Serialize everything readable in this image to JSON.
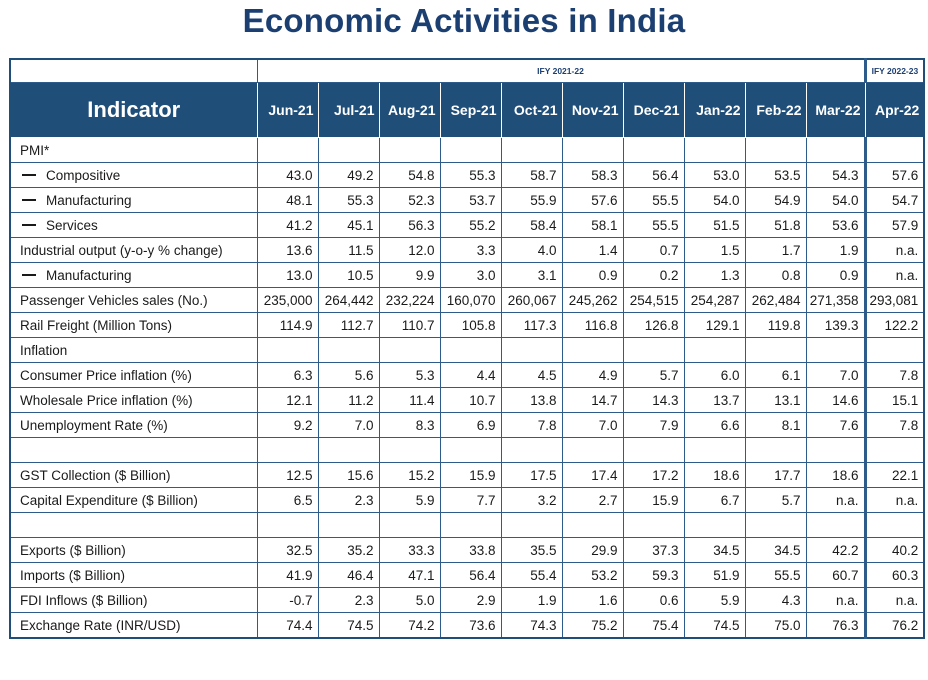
{
  "title": "Economic Activities in India",
  "fiscal_years": {
    "fy1": "IFY 2021-22",
    "fy2": "IFY 2022-23"
  },
  "header": {
    "indicator": "Indicator",
    "months": [
      "Jun-21",
      "Jul-21",
      "Aug-21",
      "Sep-21",
      "Oct-21",
      "Nov-21",
      "Dec-21",
      "Jan-22",
      "Feb-22",
      "Mar-22",
      "Apr-22"
    ]
  },
  "rows": [
    {
      "label": "PMI*",
      "sub": false,
      "values": [
        "",
        "",
        "",
        "",
        "",
        "",
        "",
        "",
        "",
        "",
        ""
      ]
    },
    {
      "label": "Compositive",
      "sub": true,
      "values": [
        "43.0",
        "49.2",
        "54.8",
        "55.3",
        "58.7",
        "58.3",
        "56.4",
        "53.0",
        "53.5",
        "54.3",
        "57.6"
      ]
    },
    {
      "label": "Manufacturing",
      "sub": true,
      "values": [
        "48.1",
        "55.3",
        "52.3",
        "53.7",
        "55.9",
        "57.6",
        "55.5",
        "54.0",
        "54.9",
        "54.0",
        "54.7"
      ]
    },
    {
      "label": "Services",
      "sub": true,
      "values": [
        "41.2",
        "45.1",
        "56.3",
        "55.2",
        "58.4",
        "58.1",
        "55.5",
        "51.5",
        "51.8",
        "53.6",
        "57.9"
      ]
    },
    {
      "label": "Industrial output (y-o-y % change)",
      "sub": false,
      "values": [
        "13.6",
        "11.5",
        "12.0",
        "3.3",
        "4.0",
        "1.4",
        "0.7",
        "1.5",
        "1.7",
        "1.9",
        "n.a."
      ]
    },
    {
      "label": "Manufacturing",
      "sub": true,
      "values": [
        "13.0",
        "10.5",
        "9.9",
        "3.0",
        "3.1",
        "0.9",
        "0.2",
        "1.3",
        "0.8",
        "0.9",
        "n.a."
      ]
    },
    {
      "label": "Passenger Vehicles sales (No.)",
      "sub": false,
      "values": [
        "235,000",
        "264,442",
        "232,224",
        "160,070",
        "260,067",
        "245,262",
        "254,515",
        "254,287",
        "262,484",
        "271,358",
        "293,081"
      ]
    },
    {
      "label": "Rail Freight (Million Tons)",
      "sub": false,
      "values": [
        "114.9",
        "112.7",
        "110.7",
        "105.8",
        "117.3",
        "116.8",
        "126.8",
        "129.1",
        "119.8",
        "139.3",
        "122.2"
      ]
    },
    {
      "label": "Inflation",
      "sub": false,
      "values": [
        "",
        "",
        "",
        "",
        "",
        "",
        "",
        "",
        "",
        "",
        ""
      ]
    },
    {
      "label": "Consumer Price inflation (%)",
      "sub": false,
      "values": [
        "6.3",
        "5.6",
        "5.3",
        "4.4",
        "4.5",
        "4.9",
        "5.7",
        "6.0",
        "6.1",
        "7.0",
        "7.8"
      ]
    },
    {
      "label": "Wholesale Price inflation (%)",
      "sub": false,
      "values": [
        "12.1",
        "11.2",
        "11.4",
        "10.7",
        "13.8",
        "14.7",
        "14.3",
        "13.7",
        "13.1",
        "14.6",
        "15.1"
      ]
    },
    {
      "label": "Unemployment Rate (%)",
      "sub": false,
      "values": [
        "9.2",
        "7.0",
        "8.3",
        "6.9",
        "7.8",
        "7.0",
        "7.9",
        "6.6",
        "8.1",
        "7.6",
        "7.8"
      ]
    },
    {
      "label": "",
      "sub": false,
      "values": [
        "",
        "",
        "",
        "",
        "",
        "",
        "",
        "",
        "",
        "",
        ""
      ]
    },
    {
      "label": "GST Collection ($ Billion)",
      "sub": false,
      "values": [
        "12.5",
        "15.6",
        "15.2",
        "15.9",
        "17.5",
        "17.4",
        "17.2",
        "18.6",
        "17.7",
        "18.6",
        "22.1"
      ]
    },
    {
      "label": "Capital Expenditure ($ Billion)",
      "sub": false,
      "values": [
        "6.5",
        "2.3",
        "5.9",
        "7.7",
        "3.2",
        "2.7",
        "15.9",
        "6.7",
        "5.7",
        "n.a.",
        "n.a."
      ]
    },
    {
      "label": "",
      "sub": false,
      "values": [
        "",
        "",
        "",
        "",
        "",
        "",
        "",
        "",
        "",
        "",
        ""
      ]
    },
    {
      "label": "Exports ($ Billion)",
      "sub": false,
      "values": [
        "32.5",
        "35.2",
        "33.3",
        "33.8",
        "35.5",
        "29.9",
        "37.3",
        "34.5",
        "34.5",
        "42.2",
        "40.2"
      ]
    },
    {
      "label": "Imports ($ Billion)",
      "sub": false,
      "values": [
        "41.9",
        "46.4",
        "47.1",
        "56.4",
        "55.4",
        "53.2",
        "59.3",
        "51.9",
        "55.5",
        "60.7",
        "60.3"
      ]
    },
    {
      "label": "FDI Inflows ($ Billion)",
      "sub": false,
      "values": [
        "-0.7",
        "2.3",
        "5.0",
        "2.9",
        "1.9",
        "1.6",
        "0.6",
        "5.9",
        "4.3",
        "n.a.",
        "n.a."
      ]
    },
    {
      "label": "Exchange Rate (INR/USD)",
      "sub": false,
      "values": [
        "74.4",
        "74.5",
        "74.2",
        "73.6",
        "74.3",
        "75.2",
        "75.4",
        "74.5",
        "75.0",
        "76.3",
        "76.2"
      ]
    }
  ]
}
